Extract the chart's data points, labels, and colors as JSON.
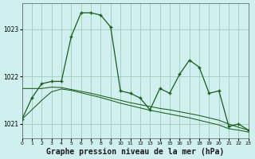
{
  "bg_color": "#cff0ef",
  "grid_color": "#a0ccbb",
  "line_color": "#1a5c1a",
  "title": "Graphe pression niveau de la mer (hPa)",
  "title_fontsize": 7.0,
  "ylim": [
    1020.7,
    1023.55
  ],
  "yticks": [
    1021,
    1022,
    1023
  ],
  "xlim": [
    0,
    23
  ],
  "xticks": [
    0,
    1,
    2,
    3,
    4,
    5,
    6,
    7,
    8,
    9,
    10,
    11,
    12,
    13,
    14,
    15,
    16,
    17,
    18,
    19,
    20,
    21,
    22,
    23
  ],
  "main_x": [
    0,
    1,
    2,
    3,
    4,
    5,
    6,
    7,
    8,
    9,
    10,
    11,
    12,
    13,
    14,
    15,
    16,
    17,
    18,
    19,
    20,
    21,
    22,
    23
  ],
  "main_y": [
    1021.1,
    1021.55,
    1021.85,
    1021.9,
    1021.9,
    1022.85,
    1023.35,
    1023.35,
    1023.3,
    1023.05,
    1021.7,
    1021.65,
    1021.55,
    1021.3,
    1021.75,
    1021.65,
    1022.05,
    1022.35,
    1022.2,
    1021.65,
    1021.7,
    1020.95,
    1021.0,
    1020.87
  ],
  "ref1_x": [
    0,
    1,
    2,
    3,
    4,
    5,
    6,
    7,
    8,
    9,
    10,
    11,
    12,
    13,
    14,
    15,
    16,
    17,
    18,
    19,
    20,
    21,
    22,
    23
  ],
  "ref1_y": [
    1021.75,
    1021.75,
    1021.75,
    1021.78,
    1021.77,
    1021.73,
    1021.69,
    1021.65,
    1021.6,
    1021.55,
    1021.5,
    1021.45,
    1021.41,
    1021.37,
    1021.33,
    1021.3,
    1021.26,
    1021.22,
    1021.18,
    1021.13,
    1021.08,
    1021.0,
    1020.93,
    1020.87
  ],
  "ref2_x": [
    0,
    1,
    2,
    3,
    4,
    5,
    6,
    7,
    8,
    9,
    10,
    11,
    12,
    13,
    14,
    15,
    16,
    17,
    18,
    19,
    20,
    21,
    22,
    23
  ],
  "ref2_y": [
    1021.1,
    1021.3,
    1021.5,
    1021.68,
    1021.74,
    1021.71,
    1021.66,
    1021.61,
    1021.56,
    1021.5,
    1021.44,
    1021.39,
    1021.34,
    1021.29,
    1021.25,
    1021.21,
    1021.17,
    1021.13,
    1021.08,
    1021.03,
    1020.98,
    1020.9,
    1020.87,
    1020.83
  ]
}
